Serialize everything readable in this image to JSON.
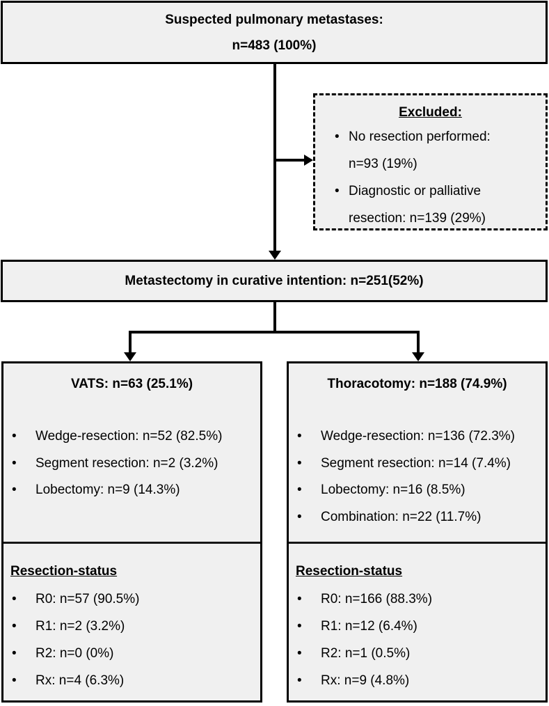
{
  "bullet": "•",
  "colors": {
    "box_fill": "#f0f0f0",
    "border": "#000000",
    "background": "#ffffff"
  },
  "top_box": {
    "line1": "Suspected pulmonary metastases:",
    "line2": "n=483 (100%)"
  },
  "excluded_box": {
    "title": "Excluded:",
    "items": [
      {
        "line1": "No resection performed:",
        "line2": "n=93 (19%)"
      },
      {
        "line1": "Diagnostic or palliative",
        "line2": "resection: n=139 (29%)"
      }
    ]
  },
  "middle_box": {
    "text": "Metastectomy in curative intention: n=251(52%)"
  },
  "vats_box": {
    "title": "VATS: n=63 (25.1%)",
    "items": [
      "Wedge-resection: n=52 (82.5%)",
      "Segment resection: n=2 (3.2%)",
      "Lobectomy: n=9 (14.3%)"
    ],
    "status_title": "Resection-status",
    "status_items": [
      "R0: n=57 (90.5%)",
      "R1: n=2 (3.2%)",
      "R2: n=0 (0%)",
      "Rx: n=4 (6.3%)"
    ]
  },
  "thoracotomy_box": {
    "title": "Thoracotomy: n=188 (74.9%)",
    "items": [
      "Wedge-resection: n=136 (72.3%)",
      "Segment resection: n=14 (7.4%)",
      "Lobectomy: n=16 (8.5%)",
      "Combination: n=22 (11.7%)"
    ],
    "status_title": "Resection-status",
    "status_items": [
      "R0: n=166 (88.3%)",
      "R1: n=12 (6.4%)",
      "R2: n=1 (0.5%)",
      "Rx: n=9 (4.8%)"
    ]
  }
}
